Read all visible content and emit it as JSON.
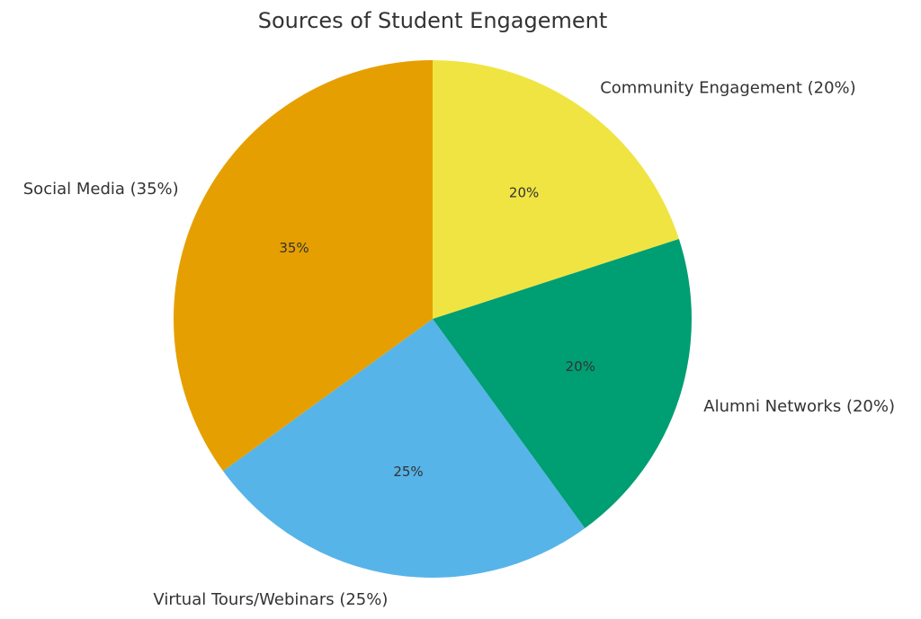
{
  "chart_data": {
    "type": "pie",
    "title": "Sources of Student Engagement",
    "start_angle_deg": 90,
    "direction": "clockwise",
    "slices": [
      {
        "label": "Community Engagement (20%)",
        "value": 20,
        "pct_label": "20%",
        "color": "#F0E442"
      },
      {
        "label": "Alumni Networks (20%)",
        "value": 20,
        "pct_label": "20%",
        "color": "#009E73"
      },
      {
        "label": "Virtual Tours/Webinars (25%)",
        "value": 25,
        "pct_label": "25%",
        "color": "#56B4E9"
      },
      {
        "label": "Social Media (35%)",
        "value": 35,
        "pct_label": "35%",
        "color": "#E69F00"
      }
    ]
  }
}
